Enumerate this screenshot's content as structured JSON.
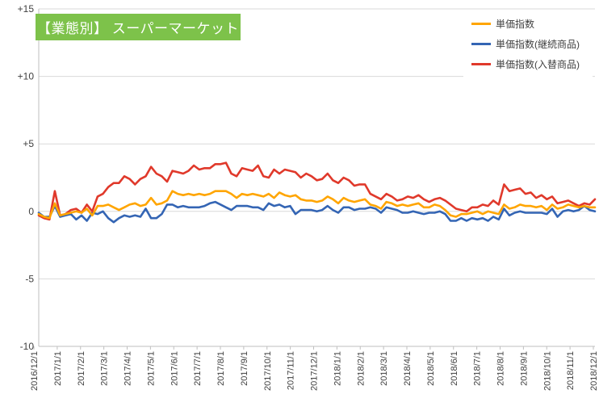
{
  "chart_data": {
    "type": "line",
    "title": "【業態別】 スーパーマーケット",
    "xlabel": "",
    "ylabel": "",
    "ylim": [
      -10,
      15
    ],
    "yticks": [
      -10,
      -5,
      0,
      5,
      10,
      15
    ],
    "ytick_labels": [
      "-10",
      "-5",
      "0",
      "+5",
      "+10",
      "+15"
    ],
    "xtick_labels": [
      "2016/12/1",
      "2017/1/1",
      "2017/2/1",
      "2017/3/1",
      "2017/4/1",
      "2017/5/1",
      "2017/6/1",
      "2017/7/1",
      "2017/8/1",
      "2017/9/1",
      "2017/10/1",
      "2017/11/1",
      "2017/12/1",
      "2018/1/1",
      "2018/2/1",
      "2018/3/1",
      "2018/4/1",
      "2018/5/1",
      "2018/6/1",
      "2018/7/1",
      "2018/8/1",
      "2018/9/1",
      "2018/10/1",
      "2018/11/1",
      "2018/12/1"
    ],
    "grid": true,
    "legend": "top-right",
    "series": [
      {
        "name": "単価指数",
        "color": "#ffa500",
        "values": [
          -0.2,
          -0.4,
          -0.5,
          0.6,
          -0.3,
          -0.2,
          -0.1,
          0.0,
          -0.1,
          0.2,
          -0.3,
          0.4,
          0.4,
          0.5,
          0.3,
          0.1,
          0.3,
          0.5,
          0.6,
          0.4,
          0.5,
          1.0,
          0.5,
          0.6,
          0.8,
          1.5,
          1.3,
          1.2,
          1.3,
          1.2,
          1.3,
          1.2,
          1.3,
          1.5,
          1.5,
          1.5,
          1.3,
          1.0,
          1.3,
          1.2,
          1.3,
          1.2,
          1.1,
          1.3,
          1.0,
          1.4,
          1.2,
          1.1,
          1.2,
          0.9,
          0.8,
          0.8,
          0.7,
          0.8,
          1.1,
          0.9,
          0.6,
          1.0,
          0.8,
          0.7,
          0.8,
          0.9,
          0.5,
          0.4,
          0.2,
          0.7,
          0.6,
          0.4,
          0.5,
          0.4,
          0.5,
          0.6,
          0.3,
          0.3,
          0.5,
          0.4,
          0.1,
          -0.3,
          -0.4,
          -0.2,
          -0.2,
          -0.1,
          0.0,
          -0.2,
          0.0,
          -0.1,
          -0.2,
          0.5,
          0.2,
          0.3,
          0.5,
          0.4,
          0.4,
          0.3,
          0.4,
          0.1,
          0.5,
          0.2,
          0.3,
          0.5,
          0.4,
          0.3,
          0.4,
          0.3,
          0.3
        ]
      },
      {
        "name": "単価指数(継続商品)",
        "color": "#3465b4",
        "values": [
          -0.1,
          -0.4,
          -0.4,
          0.4,
          -0.4,
          -0.3,
          -0.2,
          -0.6,
          -0.3,
          -0.7,
          -0.1,
          -0.2,
          0.0,
          -0.5,
          -0.8,
          -0.5,
          -0.3,
          -0.4,
          -0.3,
          -0.4,
          0.2,
          -0.5,
          -0.5,
          -0.2,
          0.5,
          0.5,
          0.3,
          0.4,
          0.3,
          0.3,
          0.3,
          0.4,
          0.6,
          0.7,
          0.5,
          0.3,
          0.1,
          0.4,
          0.4,
          0.4,
          0.3,
          0.3,
          0.1,
          0.6,
          0.4,
          0.5,
          0.3,
          0.4,
          -0.2,
          0.1,
          0.1,
          0.1,
          0.0,
          0.1,
          0.4,
          0.1,
          -0.1,
          0.3,
          0.3,
          0.1,
          0.2,
          0.2,
          0.3,
          0.2,
          -0.1,
          0.3,
          0.2,
          0.1,
          -0.1,
          -0.1,
          0.0,
          -0.1,
          -0.2,
          -0.1,
          -0.1,
          0.0,
          -0.2,
          -0.7,
          -0.7,
          -0.5,
          -0.7,
          -0.5,
          -0.6,
          -0.5,
          -0.7,
          -0.4,
          -0.6,
          0.2,
          -0.3,
          -0.1,
          0.0,
          -0.1,
          -0.1,
          -0.1,
          -0.1,
          -0.2,
          0.2,
          -0.4,
          0.0,
          0.1,
          0.0,
          0.1,
          0.4,
          0.1,
          0.0
        ]
      },
      {
        "name": "単価指数(入替商品)",
        "color": "#e0392b",
        "values": [
          -0.3,
          -0.5,
          -0.6,
          1.5,
          -0.3,
          -0.2,
          0.1,
          0.2,
          -0.1,
          0.5,
          0.0,
          1.1,
          1.3,
          1.8,
          2.1,
          2.1,
          2.6,
          2.4,
          2.0,
          2.4,
          2.6,
          3.3,
          2.8,
          2.6,
          2.2,
          3.0,
          2.9,
          2.8,
          3.0,
          3.4,
          3.1,
          3.2,
          3.2,
          3.5,
          3.5,
          3.6,
          2.8,
          2.6,
          3.2,
          3.1,
          3.0,
          3.4,
          2.6,
          2.5,
          3.1,
          2.8,
          3.1,
          3.0,
          2.9,
          2.5,
          2.8,
          2.6,
          2.3,
          2.4,
          2.8,
          2.3,
          2.1,
          2.5,
          2.3,
          1.9,
          2.0,
          2.0,
          1.3,
          1.1,
          0.9,
          1.3,
          1.1,
          0.8,
          0.9,
          1.1,
          1.0,
          1.2,
          0.9,
          0.7,
          0.9,
          1.0,
          0.8,
          0.5,
          0.2,
          0.1,
          0.0,
          0.3,
          0.3,
          0.5,
          0.4,
          0.8,
          0.5,
          2.0,
          1.5,
          1.6,
          1.7,
          1.3,
          1.4,
          1.0,
          1.2,
          0.9,
          1.1,
          0.6,
          0.7,
          0.8,
          0.6,
          0.4,
          0.6,
          0.5,
          0.9
        ]
      }
    ]
  }
}
